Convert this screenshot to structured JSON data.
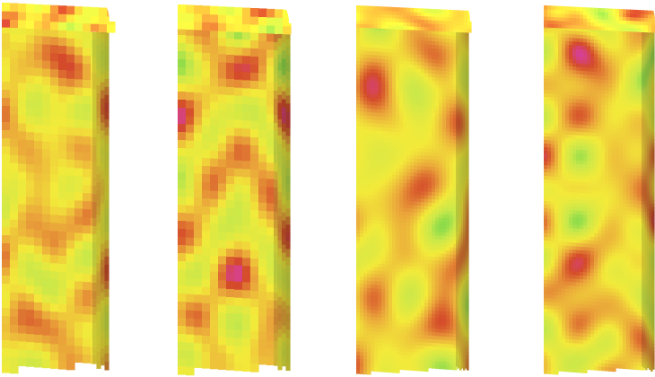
{
  "palette": {
    "low": "#2fd3e0",
    "green": "#5ed24a",
    "yellow_green": "#c9e84a",
    "yellow": "#f3ea3a",
    "orange": "#eaa43a",
    "red": "#d44a2a",
    "magenta": "#d838e8",
    "violet": "#9a3ae8"
  },
  "volumes": [
    {
      "resolution": "coarse",
      "seed": 11
    },
    {
      "resolution": "coarse",
      "seed": 23
    },
    {
      "resolution": "fine",
      "seed": 37
    },
    {
      "resolution": "fine",
      "seed": 53
    }
  ]
}
